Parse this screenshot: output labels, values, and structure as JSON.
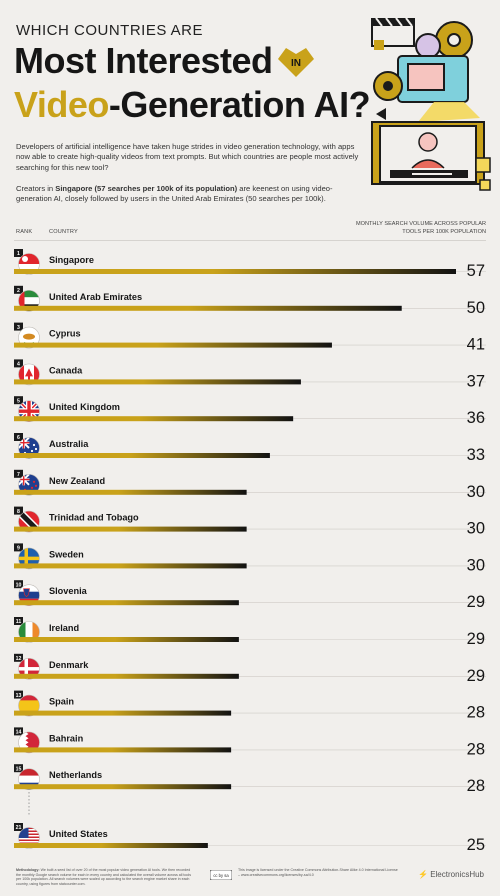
{
  "header": {
    "kicker": "WHICH COUNTRIES ARE",
    "title_line1": "Most Interested",
    "badge_text": "IN",
    "title_line2_highlight": "Video",
    "title_line2_rest": "-Generation AI?"
  },
  "intro": {
    "paragraph1": "Developers of artificial intelligence have taken huge strides in video generation technology, with apps now able to create high-quality videos from text prompts. But which countries are people most actively searching for this new tool?",
    "paragraph2_prefix": "Creators in ",
    "paragraph2_bold": "Singapore (57 searches per 100k of its population)",
    "paragraph2_suffix": " are keenest on using video-generation AI, closely followed by users in the United Arab Emirates (50 searches per 100k)."
  },
  "columns": {
    "rank": "RANK",
    "country": "COUNTRY",
    "value": "MONTHLY SEARCH VOLUME ACROSS POPULAR TOOLS PER 100K POPULATION"
  },
  "colors": {
    "gold": "#c9a21a",
    "dark": "#121212",
    "background": "#f1efec"
  },
  "chart_data": {
    "type": "bar",
    "orientation": "horizontal",
    "categories": [
      "Singapore",
      "United Arab Emirates",
      "Cyprus",
      "Canada",
      "United Kingdom",
      "Australia",
      "New Zealand",
      "Trinidad and Tobago",
      "Sweden",
      "Slovenia",
      "Ireland",
      "Denmark",
      "Spain",
      "Bahrain",
      "Netherlands",
      "United States"
    ],
    "ranks": [
      1,
      2,
      3,
      4,
      5,
      6,
      7,
      8,
      9,
      10,
      11,
      12,
      13,
      14,
      15,
      21
    ],
    "values": [
      57,
      50,
      41,
      37,
      36,
      33,
      30,
      30,
      30,
      29,
      29,
      29,
      28,
      28,
      28,
      25
    ],
    "flags": [
      "singapore",
      "uae",
      "cyprus",
      "canada",
      "uk",
      "australia",
      "new-zealand",
      "trinidad",
      "sweden",
      "slovenia",
      "ireland",
      "denmark",
      "spain",
      "bahrain",
      "netherlands",
      "usa"
    ],
    "xlim": [
      0,
      57
    ]
  },
  "footer": {
    "methodology_label": "Methodology:",
    "methodology": "We built a seed list of over 20 of the most popular video generation AI tools. We then recorded the monthly Google search volume for each in every country and calculated the overall volume across all tools per 100k population. All search volumes were scaled up according to the search engine market share in each country, using figures from statcounter.com.",
    "cc_label": "cc by sa",
    "license": "This image is licensed under the Creative Commons Attribution-Share Alike 4.0 International License – www.creativecommons.org/licenses/by-sa/4.0",
    "brand": "ElectronicsHub"
  }
}
